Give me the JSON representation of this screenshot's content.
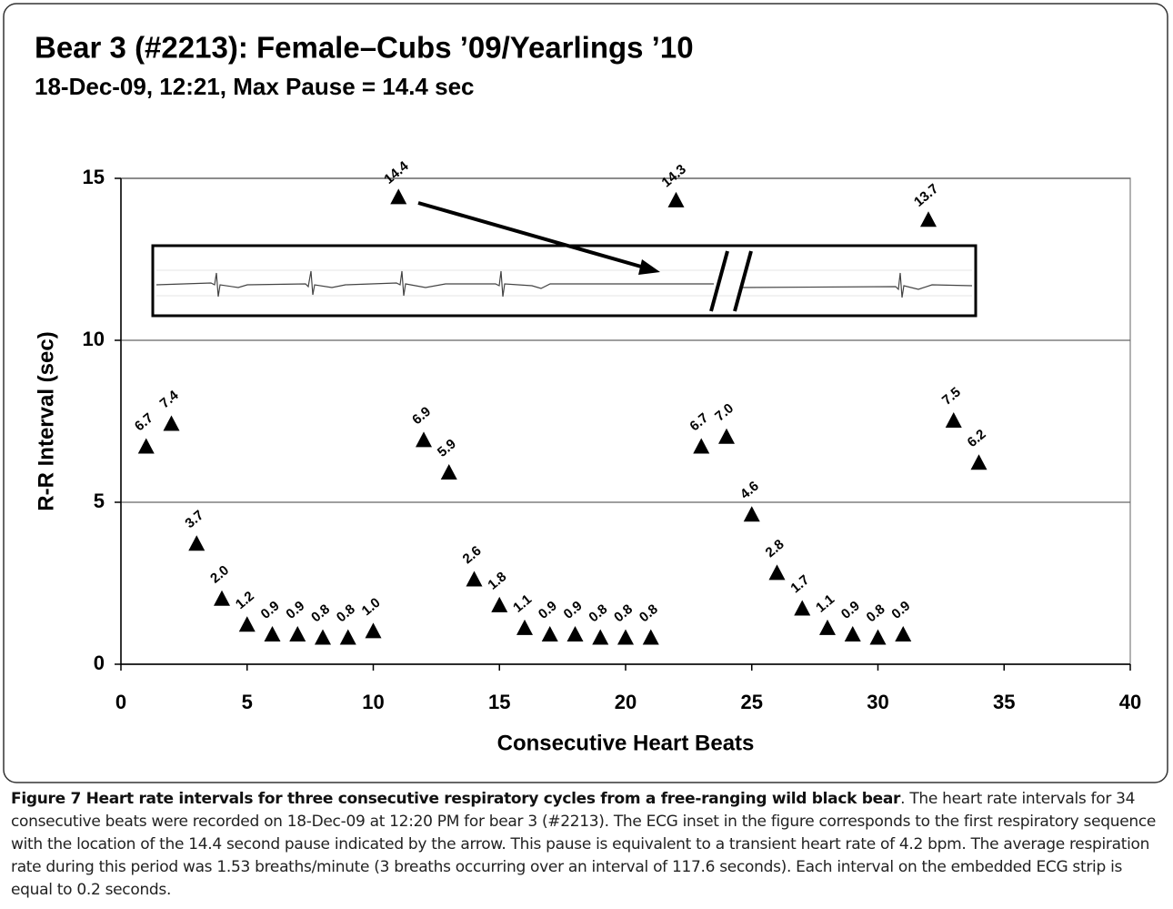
{
  "chart_data": {
    "type": "scatter",
    "title": "Bear 3 (#2213): Female–Cubs ’09/Yearlings ’10",
    "subtitle": "18-Dec-09, 12:21, Max Pause = 14.4 sec",
    "x_label": "Consecutive Heart Beats",
    "y_label": "R-R Interval (sec)",
    "x": [
      1,
      2,
      3,
      4,
      5,
      6,
      7,
      8,
      9,
      10,
      11,
      12,
      13,
      14,
      15,
      16,
      17,
      18,
      19,
      20,
      21,
      22,
      23,
      24,
      25,
      26,
      27,
      28,
      29,
      30,
      31,
      32,
      33,
      34
    ],
    "values": [
      6.7,
      7.4,
      3.7,
      2.0,
      1.2,
      0.9,
      0.9,
      0.8,
      0.8,
      1.0,
      14.4,
      6.9,
      5.9,
      2.6,
      1.8,
      1.1,
      0.9,
      0.9,
      0.8,
      0.8,
      0.8,
      14.3,
      6.7,
      7.0,
      4.6,
      2.8,
      1.7,
      1.1,
      0.9,
      0.8,
      0.9,
      13.7,
      7.5,
      6.2
    ],
    "value_labels": [
      "6.7",
      "7.4",
      "3.7",
      "2.0",
      "1.2",
      "0.9",
      "0.9",
      "0.8",
      "0.8",
      "1.0",
      "14.4",
      "6.9",
      "5.9",
      "2.6",
      "1.8",
      "1.1",
      "0.9",
      "0.9",
      "0.8",
      "0.8",
      "0.8",
      "14.3",
      "6.7",
      "7.0",
      "4.6",
      "2.8",
      "1.7",
      "1.1",
      "0.9",
      "0.8",
      "0.9",
      "13.7",
      "7.5",
      "6.2"
    ],
    "color": "#000000",
    "marker": "triangle",
    "xlim": [
      0,
      40
    ],
    "xticks": [
      0,
      5,
      10,
      15,
      20,
      25,
      30,
      35,
      40
    ],
    "ylim": [
      0,
      15
    ],
    "yticks": [
      0,
      5,
      10,
      15
    ],
    "grid": true
  },
  "caption": {
    "bold": "Figure 7 Heart rate intervals for three consecutive respiratory cycles from a free-ranging wild black bear",
    "text": ". The heart rate intervals for 34 consecutive beats were recorded on 18-Dec-09 at 12:20 PM for bear 3 (#2213). The ECG inset in the figure corresponds to the first respiratory sequence with the location of the 14.4 second pause indicated by the arrow. This pause is equivalent to a transient heart rate of 4.2 bpm. The average respiration rate during this period was 1.53 breaths/minute (3 breaths occurring over an interval of 117.6 seconds). Each interval on the embedded ECG strip is equal to 0.2 seconds."
  }
}
